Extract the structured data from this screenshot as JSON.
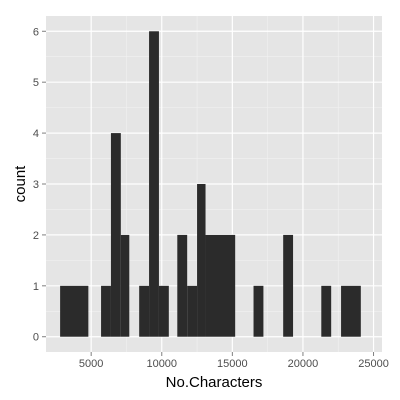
{
  "chart_data": {
    "type": "bar",
    "title": "",
    "xlabel": "No.Characters",
    "ylabel": "count",
    "grid": true,
    "xlim": [
      1800,
      25600
    ],
    "ylim": [
      -0.3,
      6.3
    ],
    "x_ticks": [
      5000,
      10000,
      15000,
      20000,
      25000
    ],
    "y_ticks": [
      0,
      1,
      2,
      3,
      4,
      5,
      6
    ],
    "bin_width": 680,
    "series": [
      {
        "bins": [
          {
            "x0": 2800,
            "x1": 4800,
            "count": 1
          },
          {
            "x0": 5700,
            "x1": 6400,
            "count": 1
          },
          {
            "x0": 6400,
            "x1": 7100,
            "count": 4
          },
          {
            "x0": 7100,
            "x1": 7700,
            "count": 2
          },
          {
            "x0": 8400,
            "x1": 9100,
            "count": 1
          },
          {
            "x0": 9100,
            "x1": 9800,
            "count": 6
          },
          {
            "x0": 9800,
            "x1": 10500,
            "count": 1
          },
          {
            "x0": 11100,
            "x1": 11800,
            "count": 2
          },
          {
            "x0": 11800,
            "x1": 12500,
            "count": 1
          },
          {
            "x0": 12500,
            "x1": 13100,
            "count": 3
          },
          {
            "x0": 13100,
            "x1": 15200,
            "count": 2
          },
          {
            "x0": 16500,
            "x1": 17200,
            "count": 1
          },
          {
            "x0": 18600,
            "x1": 19300,
            "count": 2
          },
          {
            "x0": 21300,
            "x1": 22000,
            "count": 1
          },
          {
            "x0": 22700,
            "x1": 24100,
            "count": 1
          }
        ]
      }
    ]
  },
  "style": {
    "panel_bg": "#e5e5e5",
    "grid_major": "#ffffff",
    "grid_minor": "#f2f2f2",
    "bar_fill": "#2b2b2b",
    "tick_color": "#7f7f7f",
    "tick_text_color": "#4d4d4d"
  }
}
